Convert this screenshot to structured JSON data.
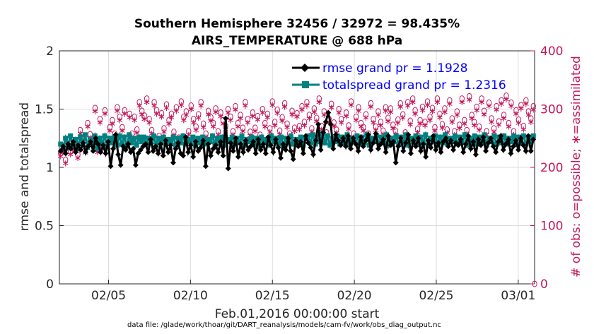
{
  "chart_data": {
    "type": "line",
    "title_line1": "Southern Hemisphere 32456 / 32972 = 98.435%",
    "title_line2": "AIRS_TEMPERATURE @ 688 hPa",
    "xlabel": "Feb.01,2016 00:00:00 start",
    "ylabel": "rmse and totalspread",
    "ylabel_right": "# of obs: o=possible; ∗=assimilated",
    "footnote": "data file: /glade/work/thoar/git/DART_reanalysis/models/cam-fv/work/obs_diag_output.nc",
    "xlim": [
      1,
      30
    ],
    "ylim": [
      0,
      2
    ],
    "ylim_right": [
      0,
      400
    ],
    "x_ticks": [
      4,
      9,
      14,
      19,
      24,
      29
    ],
    "x_tick_labels": [
      "02/05",
      "02/10",
      "02/15",
      "02/20",
      "02/25",
      "03/01"
    ],
    "y_ticks": [
      0,
      0.5,
      1,
      1.5,
      2
    ],
    "y_tick_labels": [
      "0",
      "0.5",
      "1",
      "1.5",
      "2"
    ],
    "y_ticks_right": [
      0,
      100,
      200,
      300,
      400
    ],
    "y_tick_labels_right": [
      "0",
      "100",
      "200",
      "300",
      "400"
    ],
    "grid": true,
    "legend_position": "top-right",
    "colors": {
      "rmse": "#000000",
      "spread": "#008080",
      "obs": "#c2185b",
      "legend_text": "#0000ff"
    },
    "series": [
      {
        "name": "rmse grand pr = 1.1928",
        "axis": "left",
        "values": [
          1.14,
          1.18,
          1.12,
          1.2,
          1.16,
          1.22,
          1.13,
          1.19,
          1.15,
          1.21,
          1.13,
          1.18,
          1.22,
          1.14,
          1.25,
          1.2,
          1.13,
          1.19,
          1.12,
          1.22,
          1.01,
          1.16,
          1.28,
          1.11,
          1.02,
          1.18,
          1.15,
          1.2,
          1.13,
          1.16,
          1.02,
          1.12,
          1.15,
          1.18,
          1.2,
          1.13,
          1.24,
          1.14,
          1.18,
          1.12,
          1.2,
          1.1,
          1.23,
          1.13,
          1.19,
          1.04,
          1.16,
          1.21,
          1.12,
          1.1,
          1.26,
          1.13,
          1.19,
          1.09,
          1.22,
          1.14,
          1.17,
          1.23,
          1.01,
          1.2,
          1.1,
          1.16,
          1.19,
          1.13,
          1.22,
          1.1,
          1.42,
          0.99,
          1.21,
          1.14,
          1.25,
          1.09,
          1.2,
          1.13,
          1.23,
          1.15,
          1.18,
          1.22,
          1.12,
          1.24,
          1.15,
          1.2,
          1.12,
          1.26,
          1.19,
          1.13,
          1.24,
          1.17,
          1.08,
          1.2,
          1.15,
          1.25,
          1.14,
          1.07,
          1.23,
          1.18,
          1.22,
          1.12,
          1.27,
          1.21,
          1.17,
          1.11,
          1.23,
          1.37,
          1.15,
          1.3,
          1.39,
          1.47,
          1.37,
          1.16,
          1.28,
          1.23,
          1.19,
          1.25,
          1.18,
          1.27,
          1.16,
          1.25,
          1.2,
          1.14,
          1.26,
          1.18,
          1.23,
          1.28,
          1.15,
          1.21,
          1.29,
          1.16,
          1.2,
          1.24,
          1.13,
          1.27,
          1.19,
          1.22,
          1.04,
          1.18,
          1.25,
          1.14,
          1.21,
          1.28,
          1.12,
          1.23,
          1.18,
          1.25,
          1.14,
          1.2,
          1.09,
          1.23,
          1.17,
          1.27,
          1.15,
          1.21,
          1.13,
          1.22,
          1.25,
          1.18,
          1.23,
          1.15,
          1.21,
          1.19,
          1.24,
          1.13,
          1.2,
          1.27,
          1.16,
          1.22,
          1.11,
          1.24,
          1.19,
          1.26,
          1.14,
          1.21,
          1.25,
          1.18,
          1.13,
          1.22,
          1.27,
          1.15,
          1.2,
          1.24,
          1.12,
          1.18,
          1.23,
          1.15,
          1.25,
          1.19,
          1.14,
          1.27,
          1.14,
          1.24
        ]
      },
      {
        "name": "totalspread grand pr = 1.2316",
        "axis": "left",
        "values": [
          1.2,
          1.16,
          1.25,
          1.18,
          1.27,
          1.19,
          1.24,
          1.16,
          1.26,
          1.2,
          1.28,
          1.17,
          1.24,
          1.21,
          1.27,
          1.16,
          1.25,
          1.2,
          1.27,
          1.18,
          1.25,
          1.21,
          1.26,
          1.19,
          1.27,
          1.2,
          1.26,
          1.18,
          1.28,
          1.21,
          1.25,
          1.19,
          1.26,
          1.22,
          1.26,
          1.2,
          1.25,
          1.22,
          1.27,
          1.19,
          1.25,
          1.21,
          1.26,
          1.2,
          1.24,
          1.22,
          1.26,
          1.19,
          1.25,
          1.21,
          1.27,
          1.2,
          1.24,
          1.22,
          1.26,
          1.19,
          1.25,
          1.21,
          1.26,
          1.2,
          1.24,
          1.22,
          1.27,
          1.2,
          1.25,
          1.21,
          1.26,
          1.19,
          1.24,
          1.22,
          1.26,
          1.2,
          1.25,
          1.21,
          1.27,
          1.19,
          1.24,
          1.22,
          1.26,
          1.2,
          1.25,
          1.18,
          1.26,
          1.21,
          1.24,
          1.19,
          1.27,
          1.22,
          1.25,
          1.2,
          1.26,
          1.18,
          1.25,
          1.21,
          1.27,
          1.2,
          1.24,
          1.22,
          1.26,
          1.19,
          1.25,
          1.27,
          1.21,
          1.28,
          1.2,
          1.26,
          1.22,
          1.29,
          1.21,
          1.27,
          1.19,
          1.25,
          1.22,
          1.27,
          1.2,
          1.26,
          1.21,
          1.28,
          1.19,
          1.25,
          1.22,
          1.27,
          1.2,
          1.26,
          1.21,
          1.28,
          1.19,
          1.25,
          1.22,
          1.27,
          1.2,
          1.26,
          1.21,
          1.28,
          1.19,
          1.25,
          1.22,
          1.27,
          1.2,
          1.26,
          1.21,
          1.28,
          1.19,
          1.25,
          1.22,
          1.27,
          1.2,
          1.26,
          1.21,
          1.28,
          1.19,
          1.25,
          1.22,
          1.27,
          1.2,
          1.26,
          1.21,
          1.28,
          1.2,
          1.25,
          1.22,
          1.27,
          1.2,
          1.26,
          1.21,
          1.28,
          1.19,
          1.25,
          1.22,
          1.27,
          1.2,
          1.26,
          1.21,
          1.28,
          1.19,
          1.25,
          1.22,
          1.27,
          1.2,
          1.26,
          1.21,
          1.27,
          1.2,
          1.25,
          1.22,
          1.27,
          1.2,
          1.26,
          1.21,
          1.27,
          1.2,
          1.26,
          1.22,
          1.27
        ]
      }
    ],
    "obs_possible": [
      225,
      232,
      213,
      240,
      228,
      236,
      245,
      222,
      264,
      250,
      231,
      276,
      257,
      244,
      302,
      232,
      283,
      238,
      298,
      247,
      269,
      281,
      258,
      303,
      287,
      269,
      298,
      249,
      292,
      258,
      287,
      265,
      312,
      297,
      289,
      318,
      283,
      264,
      312,
      298,
      254,
      293,
      267,
      308,
      281,
      292,
      261,
      303,
      251,
      313,
      287,
      296,
      262,
      306,
      283,
      270,
      291,
      312,
      275,
      258,
      297,
      286,
      276,
      301,
      262,
      294,
      281,
      271,
      300,
      287,
      262,
      305,
      276,
      290,
      268,
      312,
      283,
      261,
      294,
      268,
      288,
      256,
      300,
      276,
      292,
      267,
      313,
      278,
      299,
      263,
      286,
      310,
      275,
      258,
      297,
      268,
      293,
      271,
      305,
      278,
      312,
      290,
      267,
      301,
      285,
      318,
      271,
      296,
      260,
      283,
      309,
      277,
      265,
      300,
      283,
      248,
      294,
      272,
      313,
      258,
      287,
      303,
      276,
      269,
      291,
      258,
      310,
      283,
      270,
      296,
      278,
      263,
      303,
      285,
      301,
      273,
      263,
      282,
      310,
      291,
      260,
      312,
      280,
      318,
      298,
      266,
      281,
      304,
      278,
      313,
      287,
      302,
      269,
      318,
      292,
      274,
      301,
      265,
      315,
      284,
      262,
      296,
      273,
      318,
      281,
      264,
      322,
      290,
      278,
      304,
      270,
      318,
      297,
      262,
      311,
      284,
      267,
      305,
      279,
      315,
      290,
      323,
      276,
      311,
      262,
      298,
      282,
      307,
      271,
      315,
      296,
      284,
      305
    ],
    "obs_assimilated": [
      221,
      228,
      209,
      236,
      224,
      232,
      241,
      218,
      260,
      246,
      227,
      272,
      253,
      240,
      298,
      228,
      279,
      234,
      294,
      243,
      265,
      277,
      254,
      299,
      283,
      265,
      294,
      245,
      288,
      254,
      283,
      261,
      308,
      293,
      285,
      314,
      279,
      260,
      308,
      294,
      250,
      289,
      263,
      304,
      277,
      288,
      257,
      299,
      247,
      309,
      283,
      292,
      258,
      302,
      279,
      266,
      287,
      308,
      271,
      254,
      293,
      282,
      272,
      297,
      258,
      290,
      277,
      267,
      296,
      283,
      258,
      301,
      272,
      286,
      264,
      308,
      279,
      257,
      290,
      264,
      284,
      252,
      296,
      272,
      288,
      263,
      309,
      274,
      295,
      259,
      282,
      306,
      271,
      254,
      293,
      264,
      289,
      267,
      301,
      274,
      308,
      286,
      263,
      297,
      281,
      314,
      267,
      292,
      256,
      279,
      305,
      273,
      261,
      296,
      279,
      244,
      290,
      268,
      309,
      254,
      283,
      299,
      272,
      265,
      287,
      254,
      306,
      279,
      266,
      292,
      274,
      259,
      299,
      281,
      297,
      269,
      259,
      278,
      306,
      287,
      256,
      308,
      276,
      314,
      294,
      262,
      277,
      300,
      274,
      309,
      283,
      298,
      265,
      314,
      288,
      270,
      297,
      261,
      311,
      280,
      258,
      292,
      269,
      314,
      277,
      260,
      318,
      286,
      274,
      300,
      266,
      314,
      293,
      258,
      307,
      280,
      263,
      301,
      275,
      311,
      286,
      319,
      272,
      307,
      258,
      294,
      278,
      303,
      267,
      311,
      292,
      280,
      301
    ]
  }
}
